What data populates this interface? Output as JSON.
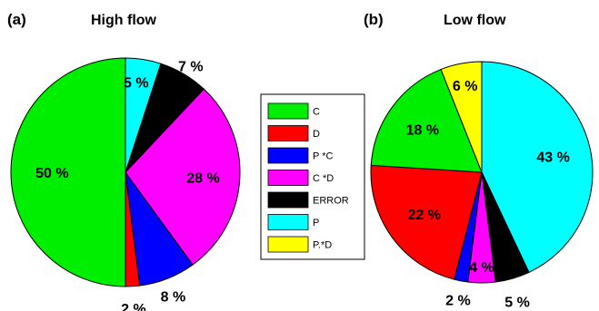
{
  "chart_data": [
    {
      "type": "pie",
      "panel": "(a)",
      "title": "High flow",
      "slices": [
        {
          "label": "C",
          "value": 50,
          "text": "50 %",
          "color": "#00ee00"
        },
        {
          "label": "D",
          "value": 2,
          "text": "2 %",
          "color": "#ff0000"
        },
        {
          "label": "P *C",
          "value": 8,
          "text": "8 %",
          "color": "#0000ff"
        },
        {
          "label": "C *D",
          "value": 28,
          "text": "28 %",
          "color": "#ff00ff"
        },
        {
          "label": "ERROR",
          "value": 7,
          "text": "7 %",
          "color": "#000000"
        },
        {
          "label": "P",
          "value": 5,
          "text": "5 %",
          "color": "#00ffff"
        }
      ]
    },
    {
      "type": "pie",
      "panel": "(b)",
      "title": "Low flow",
      "slices": [
        {
          "label": "P",
          "value": 43,
          "text": "43 %",
          "color": "#00ffff"
        },
        {
          "label": "ERROR",
          "value": 5,
          "text": "5 %",
          "color": "#000000"
        },
        {
          "label": "C *D",
          "value": 4,
          "text": "4 %",
          "color": "#ff00ff"
        },
        {
          "label": "P *C",
          "value": 2,
          "text": "2 %",
          "color": "#0000ff"
        },
        {
          "label": "D",
          "value": 22,
          "text": "22 %",
          "color": "#ff0000"
        },
        {
          "label": "C",
          "value": 18,
          "text": "18 %",
          "color": "#00ee00"
        },
        {
          "label": "P.*D",
          "value": 6,
          "text": "6 %",
          "color": "#ffff00"
        }
      ]
    }
  ],
  "legend": [
    {
      "label": "C",
      "color": "#00ee00"
    },
    {
      "label": "D",
      "color": "#ff0000"
    },
    {
      "label": "P *C",
      "color": "#0000ff"
    },
    {
      "label": "C *D",
      "color": "#ff00ff"
    },
    {
      "label": "ERROR",
      "color": "#000000"
    },
    {
      "label": "P",
      "color": "#00ffff"
    },
    {
      "label": "P.*D",
      "color": "#ffff00"
    }
  ]
}
